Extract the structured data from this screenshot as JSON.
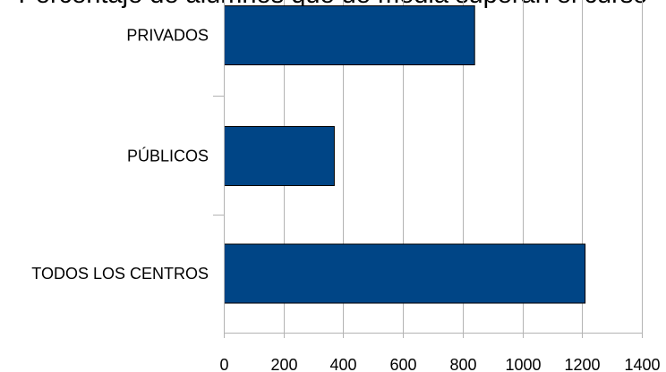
{
  "chart_data": {
    "type": "bar",
    "orientation": "horizontal",
    "title": "Porcentaje de alumnos que de media superan el curso",
    "categories": [
      "PRIVADOS",
      "PÚBLICOS",
      "TODOS LOS CENTROS"
    ],
    "values": [
      840,
      370,
      1210
    ],
    "xlim": [
      0,
      1400
    ],
    "xticks": [
      "0",
      "200",
      "400",
      "600",
      "800",
      "1000",
      "1200",
      "1400"
    ],
    "grid": "vertical",
    "bar_color": "#004586",
    "legend": "none"
  }
}
